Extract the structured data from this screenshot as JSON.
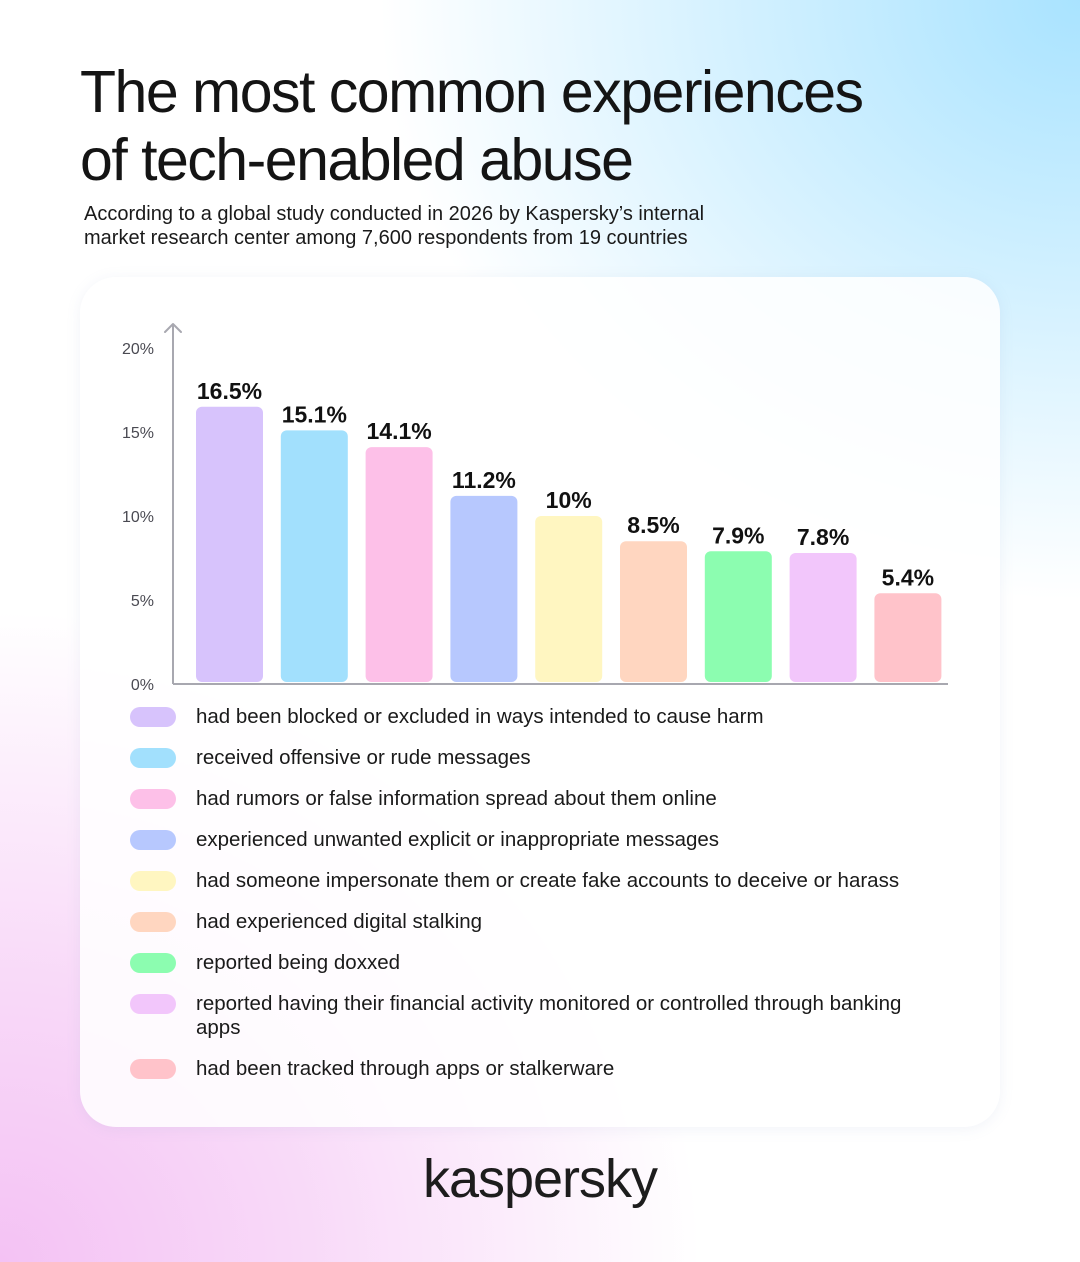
{
  "header": {
    "title_line1": "The most common experiences",
    "title_line2": "of tech-enabled abuse",
    "subtitle_line1": "According to a global study conducted in 2026 by Kaspersky’s internal",
    "subtitle_line2": "market research center among 7,600 respondents from 19 countries"
  },
  "chart_data": {
    "type": "bar",
    "title": "",
    "xlabel": "",
    "ylabel": "",
    "ylim": [
      0,
      20
    ],
    "yticks": [
      0,
      5,
      10,
      15,
      20
    ],
    "ytick_labels": [
      "0%",
      "5%",
      "10%",
      "15%",
      "20%"
    ],
    "grid": false,
    "legend_position": "bottom",
    "categories": [
      "had been blocked or excluded in ways intended to cause harm",
      "received offensive or rude messages",
      "had rumors or false information spread about them online",
      "experienced unwanted explicit or inappropriate messages",
      "had someone impersonate them or create fake accounts to deceive or harass",
      "had experienced digital stalking",
      "reported being doxxed",
      "reported having their financial activity monitored or controlled through banking apps",
      "had been tracked through apps or stalkerware"
    ],
    "values": [
      16.5,
      15.1,
      14.1,
      11.2,
      10,
      8.5,
      7.9,
      7.8,
      5.4
    ],
    "value_labels": [
      "16.5%",
      "15.1%",
      "14.1%",
      "11.2%",
      "10%",
      "8.5%",
      "7.9%",
      "7.8%",
      "5.4%"
    ],
    "colors": [
      "#d7c3fc",
      "#a2e0fd",
      "#fdc0e8",
      "#b7c8fe",
      "#fff6c1",
      "#ffd6c0",
      "#8cfdb0",
      "#f2c6fb",
      "#ffc3ca"
    ]
  },
  "brand": {
    "logo_text": "kaspersky"
  }
}
